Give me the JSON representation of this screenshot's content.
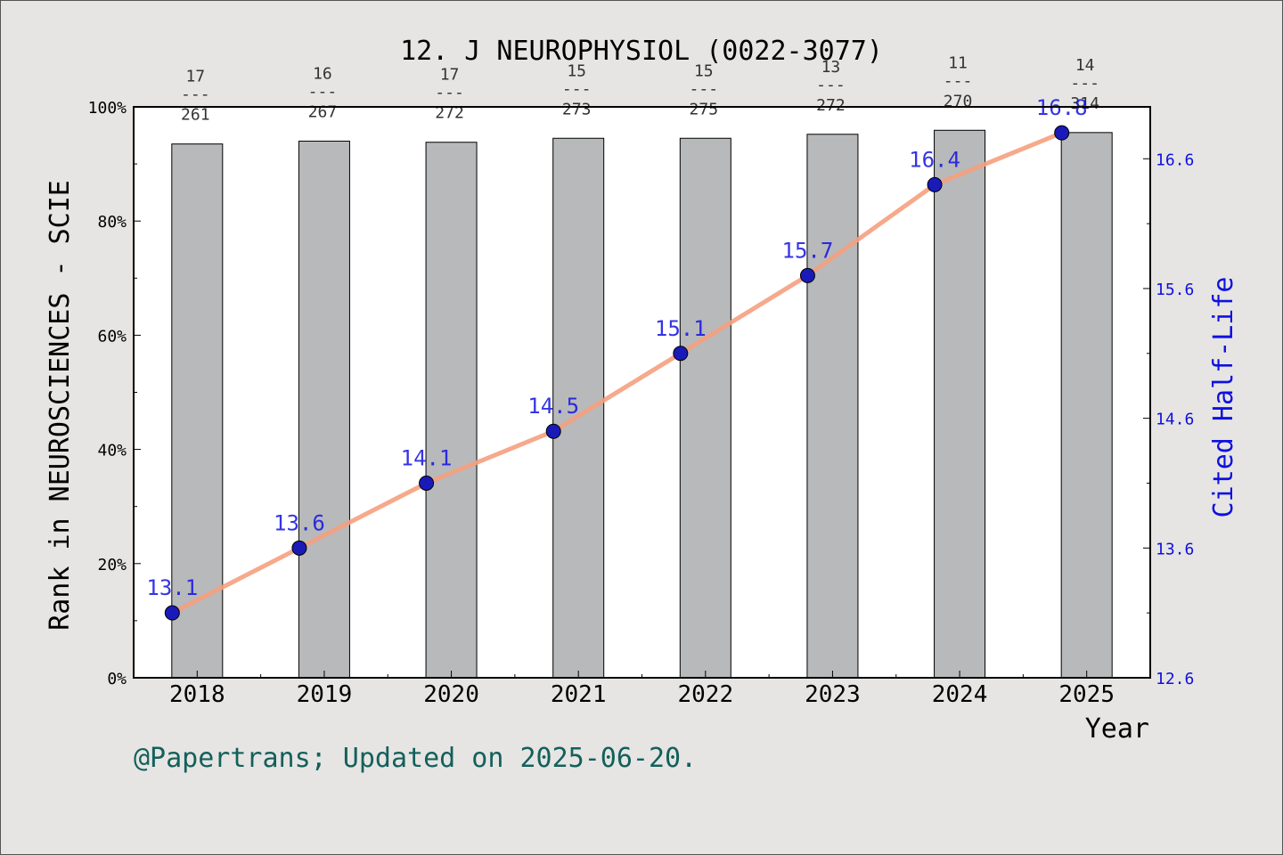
{
  "chart_data": {
    "type": "bar+line",
    "title": "12. J NEUROPHYSIOL (0022-3077)",
    "xlabel": "Year",
    "ylabel_left": "Rank in NEUROSCIENCES - SCIE",
    "ylabel_right": "Cited Half-Life",
    "categories": [
      "2018",
      "2019",
      "2020",
      "2021",
      "2022",
      "2023",
      "2024",
      "2025"
    ],
    "left_axis": {
      "ylim": [
        0,
        100
      ],
      "ticks": [
        "0%",
        "20%",
        "40%",
        "60%",
        "80%",
        "100%"
      ]
    },
    "right_axis": {
      "ylim": [
        12.6,
        17.0
      ],
      "ticks": [
        "12.6",
        "13.6",
        "14.6",
        "15.6",
        "16.6"
      ],
      "color": "#1010e0"
    },
    "bars": {
      "values_percent": [
        93.5,
        94.0,
        93.8,
        94.5,
        94.5,
        95.2,
        95.9,
        95.5
      ],
      "rank": [
        "17",
        "16",
        "17",
        "15",
        "15",
        "13",
        "11",
        "14"
      ],
      "total": [
        "261",
        "267",
        "272",
        "273",
        "275",
        "272",
        "270",
        "314"
      ],
      "separator": "---",
      "color": "#b8b9bb"
    },
    "line": {
      "values": [
        13.1,
        13.6,
        14.1,
        14.5,
        15.1,
        15.7,
        16.4,
        16.8
      ],
      "labels": [
        "13.1",
        "13.6",
        "14.1",
        "14.5",
        "15.1",
        "15.7",
        "16.4",
        "16.8"
      ],
      "line_color": "#f5a07e",
      "marker_color": "#1a1ab8",
      "label_color": "#1010e0"
    }
  },
  "footer": "@Papertrans; Updated on 2025-06-20."
}
